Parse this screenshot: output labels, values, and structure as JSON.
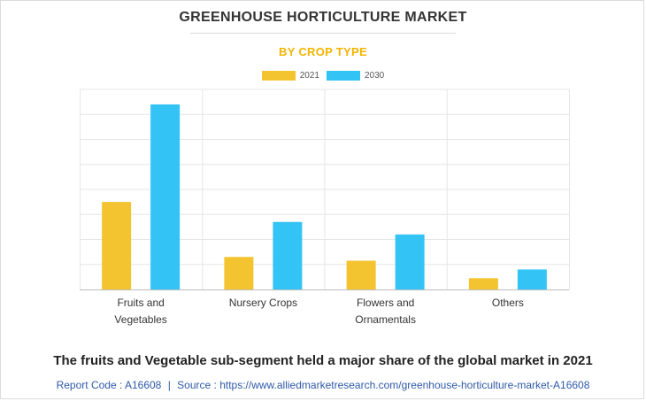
{
  "title": "GREENHOUSE HORTICULTURE MARKET",
  "subtitle": "BY CROP TYPE",
  "headline": "The fruits and Vegetable sub-segment held a major share of the global market in 2021",
  "footer": {
    "report_code": "Report Code : A16608",
    "separator": "|",
    "source": "Source : https://www.alliedmarketresearch.com/greenhouse-horticulture-market-A16608"
  },
  "colors": {
    "series_2021": "#f4c430",
    "series_2030": "#33c4f5",
    "subtitle": "#f4b400",
    "footer": "#2f5aa8"
  },
  "chart_data": {
    "type": "bar",
    "title": "GREENHOUSE HORTICULTURE MARKET",
    "subtitle": "BY CROP TYPE",
    "categories": [
      [
        "Fruits and",
        "Vegetables"
      ],
      [
        "Nursery Crops"
      ],
      [
        "Flowers and",
        "Ornamentals"
      ],
      [
        "Others"
      ]
    ],
    "series": [
      {
        "name": "2021",
        "values": [
          3.5,
          1.3,
          1.15,
          0.45
        ]
      },
      {
        "name": "2030",
        "values": [
          7.4,
          2.7,
          2.2,
          0.8
        ]
      }
    ],
    "ylim": [
      0,
      8
    ],
    "y_gridlines": 8,
    "grid": true,
    "y_tick_labels_shown": false,
    "legend_position": "top-center"
  }
}
